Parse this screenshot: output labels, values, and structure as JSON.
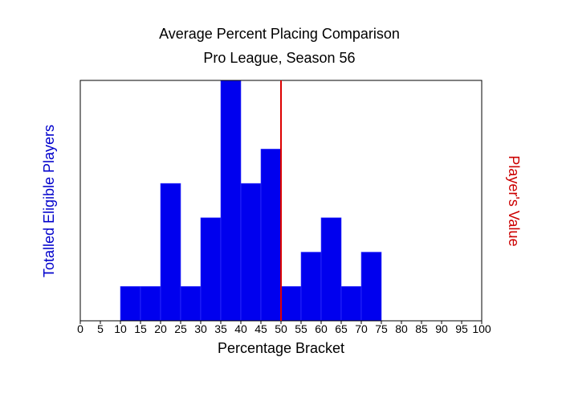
{
  "chart_data": {
    "type": "bar",
    "title": "Average Percent Placing Comparison",
    "subtitle": "Pro League, Season 56",
    "xlabel": "Percentage Bracket",
    "ylabel": "Totalled Eligible Players",
    "ylabel_right": "Player's Value",
    "xlim": [
      0,
      100
    ],
    "ylim": [
      0,
      7
    ],
    "x_ticks": [
      "0",
      "5",
      "10",
      "15",
      "20",
      "25",
      "30",
      "35",
      "40",
      "45",
      "50",
      "55",
      "60",
      "65",
      "70",
      "75",
      "80",
      "85",
      "90",
      "95",
      "100"
    ],
    "bins": [
      {
        "start": 10,
        "end": 15,
        "value": 1
      },
      {
        "start": 15,
        "end": 20,
        "value": 1
      },
      {
        "start": 20,
        "end": 25,
        "value": 4
      },
      {
        "start": 25,
        "end": 30,
        "value": 1
      },
      {
        "start": 30,
        "end": 35,
        "value": 3
      },
      {
        "start": 35,
        "end": 40,
        "value": 7
      },
      {
        "start": 40,
        "end": 45,
        "value": 4
      },
      {
        "start": 45,
        "end": 50,
        "value": 5
      },
      {
        "start": 50,
        "end": 55,
        "value": 1
      },
      {
        "start": 55,
        "end": 60,
        "value": 2
      },
      {
        "start": 60,
        "end": 65,
        "value": 3
      },
      {
        "start": 65,
        "end": 70,
        "value": 1
      },
      {
        "start": 70,
        "end": 75,
        "value": 2
      }
    ],
    "reference_line": {
      "x": 50,
      "color": "#dd0000"
    },
    "bar_color": "#0000ee",
    "grid": false
  }
}
